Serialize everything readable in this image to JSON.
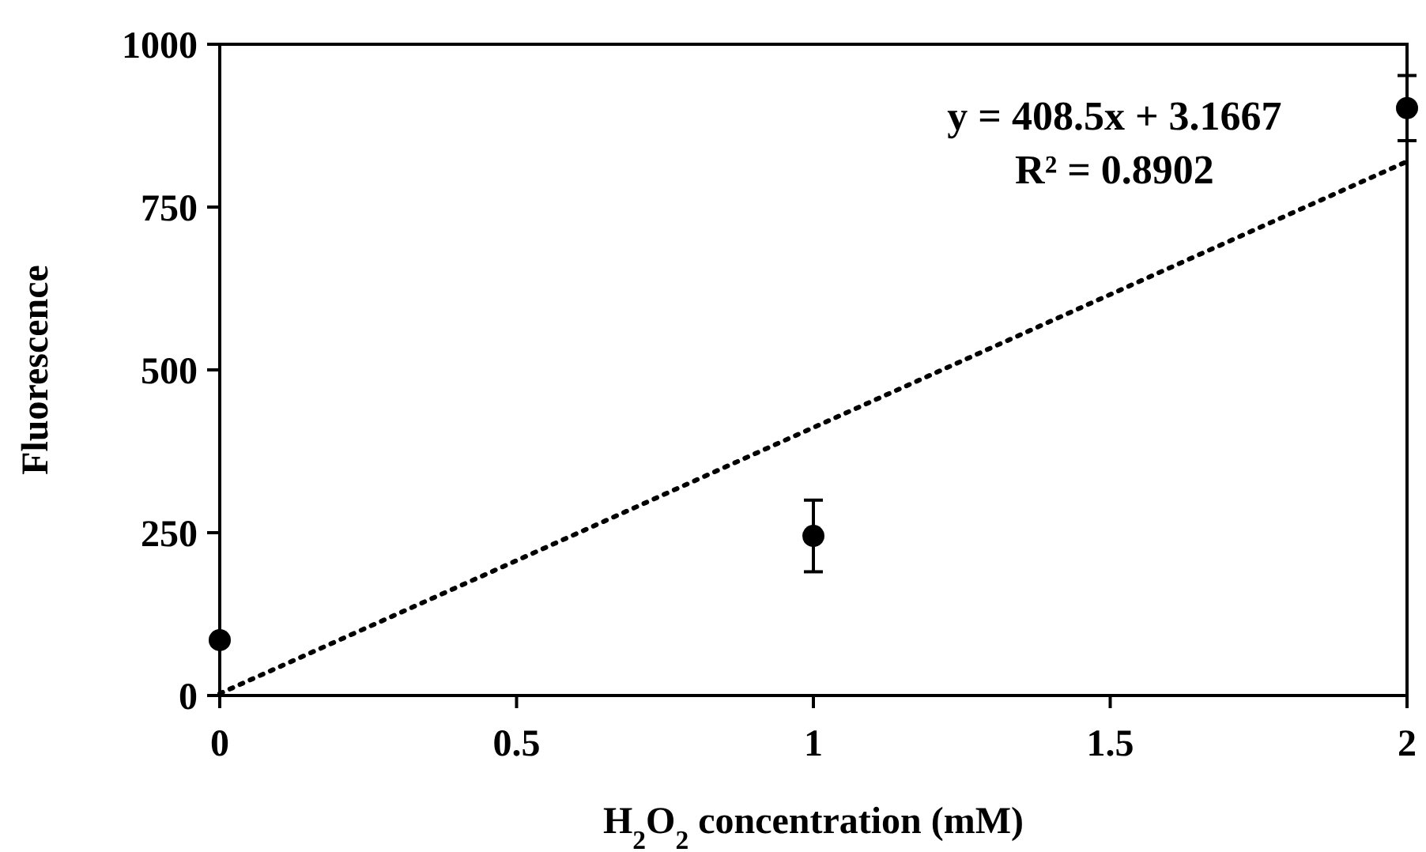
{
  "chart_data": {
    "type": "scatter",
    "xlabel": "H$_{2}$O$_{2}$ concentration (mM)",
    "ylabel": "Fluorescence",
    "xlim": [
      0,
      2
    ],
    "xticks": [
      0,
      0.5,
      1,
      1.5,
      2
    ],
    "ylim": [
      0,
      1000
    ],
    "yticks": [
      0,
      250,
      500,
      750,
      1000
    ],
    "grid": false,
    "series": [
      {
        "color": "#000000",
        "marker": "circle",
        "x": [
          0,
          1,
          2
        ],
        "values": [
          85,
          245,
          902
        ],
        "errors": [
          null,
          55,
          50
        ]
      },
      {
        "type": "line",
        "color": "#000000",
        "line_style": "dotted",
        "marker": "none",
        "x": [
          0,
          2
        ],
        "values": [
          3,
          820
        ]
      }
    ],
    "annotations": [
      "y = 408.5x + 3.1667",
      "R² = 0.8902"
    ]
  }
}
